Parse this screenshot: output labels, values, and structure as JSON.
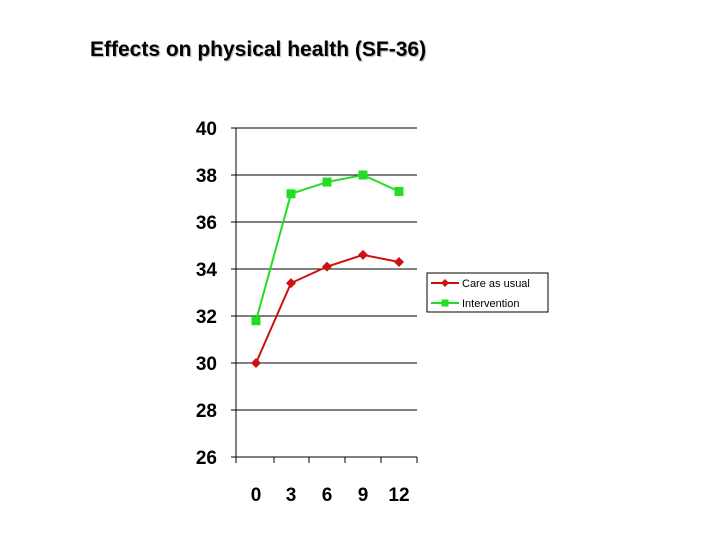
{
  "title": "Effects on physical health (SF-36)",
  "chart_data": {
    "type": "line",
    "title": "Effects on physical health (SF-36)",
    "x": [
      0,
      3,
      6,
      9,
      12
    ],
    "categories": [
      "0",
      "3",
      "6",
      "9",
      "12"
    ],
    "xlabel": "",
    "ylabel": "",
    "ylim": [
      26,
      40
    ],
    "yticks": [
      26,
      28,
      30,
      32,
      34,
      36,
      38,
      40
    ],
    "grid": "horizontal",
    "legend_position": "right",
    "series": [
      {
        "name": "Care as usual",
        "values": [
          30.0,
          33.4,
          34.1,
          34.6,
          34.3
        ],
        "color": "#cc1111",
        "marker": "diamond"
      },
      {
        "name": "Intervention",
        "values": [
          31.8,
          37.2,
          37.7,
          38.0,
          37.3
        ],
        "color": "#22dd22",
        "marker": "square"
      }
    ]
  }
}
